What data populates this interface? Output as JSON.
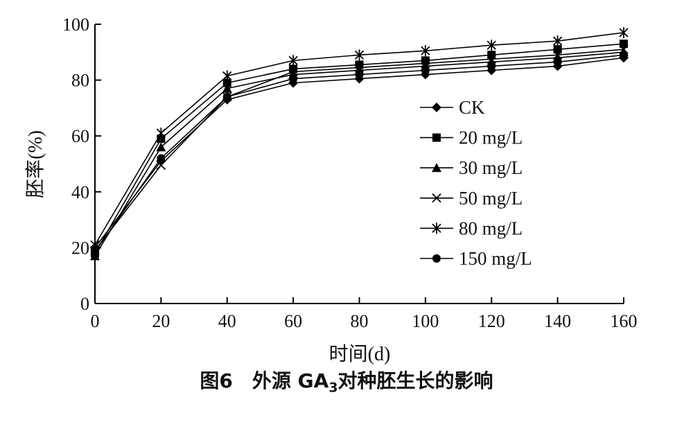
{
  "chart_data": {
    "type": "line",
    "title": "",
    "xlabel": "时间(d)",
    "ylabel": "胚率(%)",
    "xlim": [
      0,
      160
    ],
    "ylim": [
      0,
      100
    ],
    "x_ticks": [
      0,
      20,
      40,
      60,
      80,
      100,
      120,
      140,
      160
    ],
    "y_ticks": [
      0,
      20,
      40,
      60,
      80,
      100
    ],
    "grid": false,
    "legend_position": "right",
    "x": [
      0,
      20,
      40,
      60,
      80,
      100,
      120,
      140,
      160
    ],
    "series": [
      {
        "name": "CK",
        "marker": "diamond",
        "values": [
          20,
          51,
          73,
          79,
          80.5,
          82,
          83.5,
          85,
          88
        ]
      },
      {
        "name": "20 mg/L",
        "marker": "square",
        "values": [
          18,
          59,
          79,
          84,
          85.5,
          87,
          89,
          91,
          93
        ]
      },
      {
        "name": "30 mg/L",
        "marker": "triangle",
        "values": [
          17,
          56,
          77,
          82,
          83.5,
          85,
          86.5,
          88,
          90
        ]
      },
      {
        "name": "50 mg/L",
        "marker": "x",
        "values": [
          19,
          49.5,
          74,
          83,
          84.5,
          86,
          87.5,
          89,
          91
        ]
      },
      {
        "name": "80 mg/L",
        "marker": "asterisk",
        "values": [
          21,
          61,
          81.5,
          87,
          89,
          90.5,
          92.5,
          94,
          97
        ]
      },
      {
        "name": "150 mg/L",
        "marker": "circle",
        "values": [
          18.5,
          52,
          74,
          80.5,
          82,
          83.5,
          85,
          86.5,
          89
        ]
      }
    ]
  },
  "caption": {
    "prefix": "图6　外源 GA",
    "subscript": "3",
    "suffix": "对种胚生长的影响"
  }
}
